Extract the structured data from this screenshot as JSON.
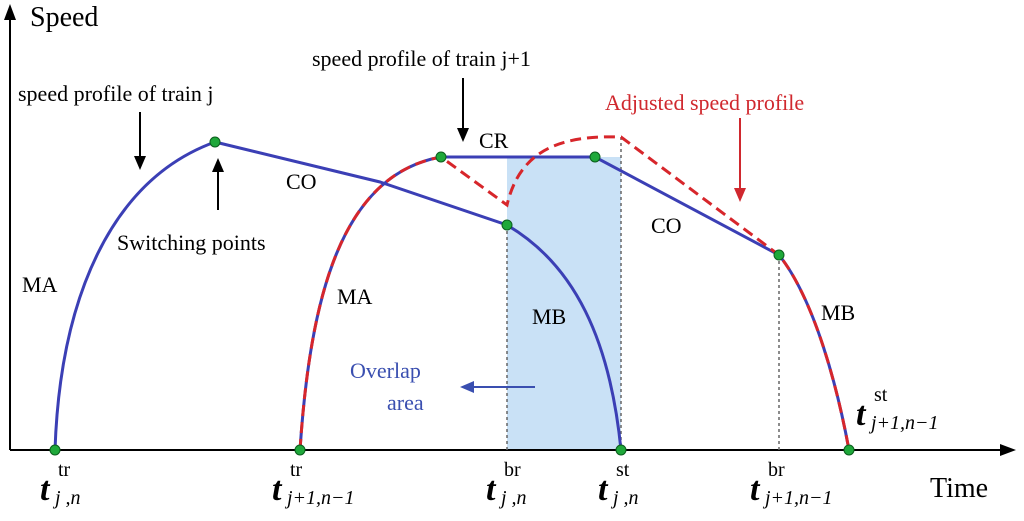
{
  "axes": {
    "y_label": "Speed",
    "x_label": "Time"
  },
  "annotations": {
    "train_j": "speed profile of train j",
    "train_j1": "speed profile of train j+1",
    "adjusted": "Adjusted speed profile",
    "switching": "Switching points",
    "overlap_line1": "Overlap",
    "overlap_line2": "area"
  },
  "phases": {
    "ma1": "MA",
    "co1": "CO",
    "ma2": "MA",
    "cr": "CR",
    "mb1": "MB",
    "co2": "CO",
    "mb2": "MB"
  },
  "ticks": [
    {
      "main": "t",
      "sup": "tr",
      "sub": "j ,n"
    },
    {
      "main": "t",
      "sup": "tr",
      "sub": "j+1,n−1"
    },
    {
      "main": "t",
      "sup": "br",
      "sub": "j ,n"
    },
    {
      "main": "t",
      "sup": "st",
      "sub": "j ,n"
    },
    {
      "main": "t",
      "sup": "br",
      "sub": "j+1,n−1"
    }
  ],
  "end_label": {
    "main": "t",
    "sup": "st",
    "sub": "j+1,n−1"
  },
  "colors": {
    "profile_blue": "#3b3fb5",
    "adjusted_red": "#d7262b",
    "overlap_fill": "#c9e1f6",
    "switch_point": "#1fa83a"
  }
}
